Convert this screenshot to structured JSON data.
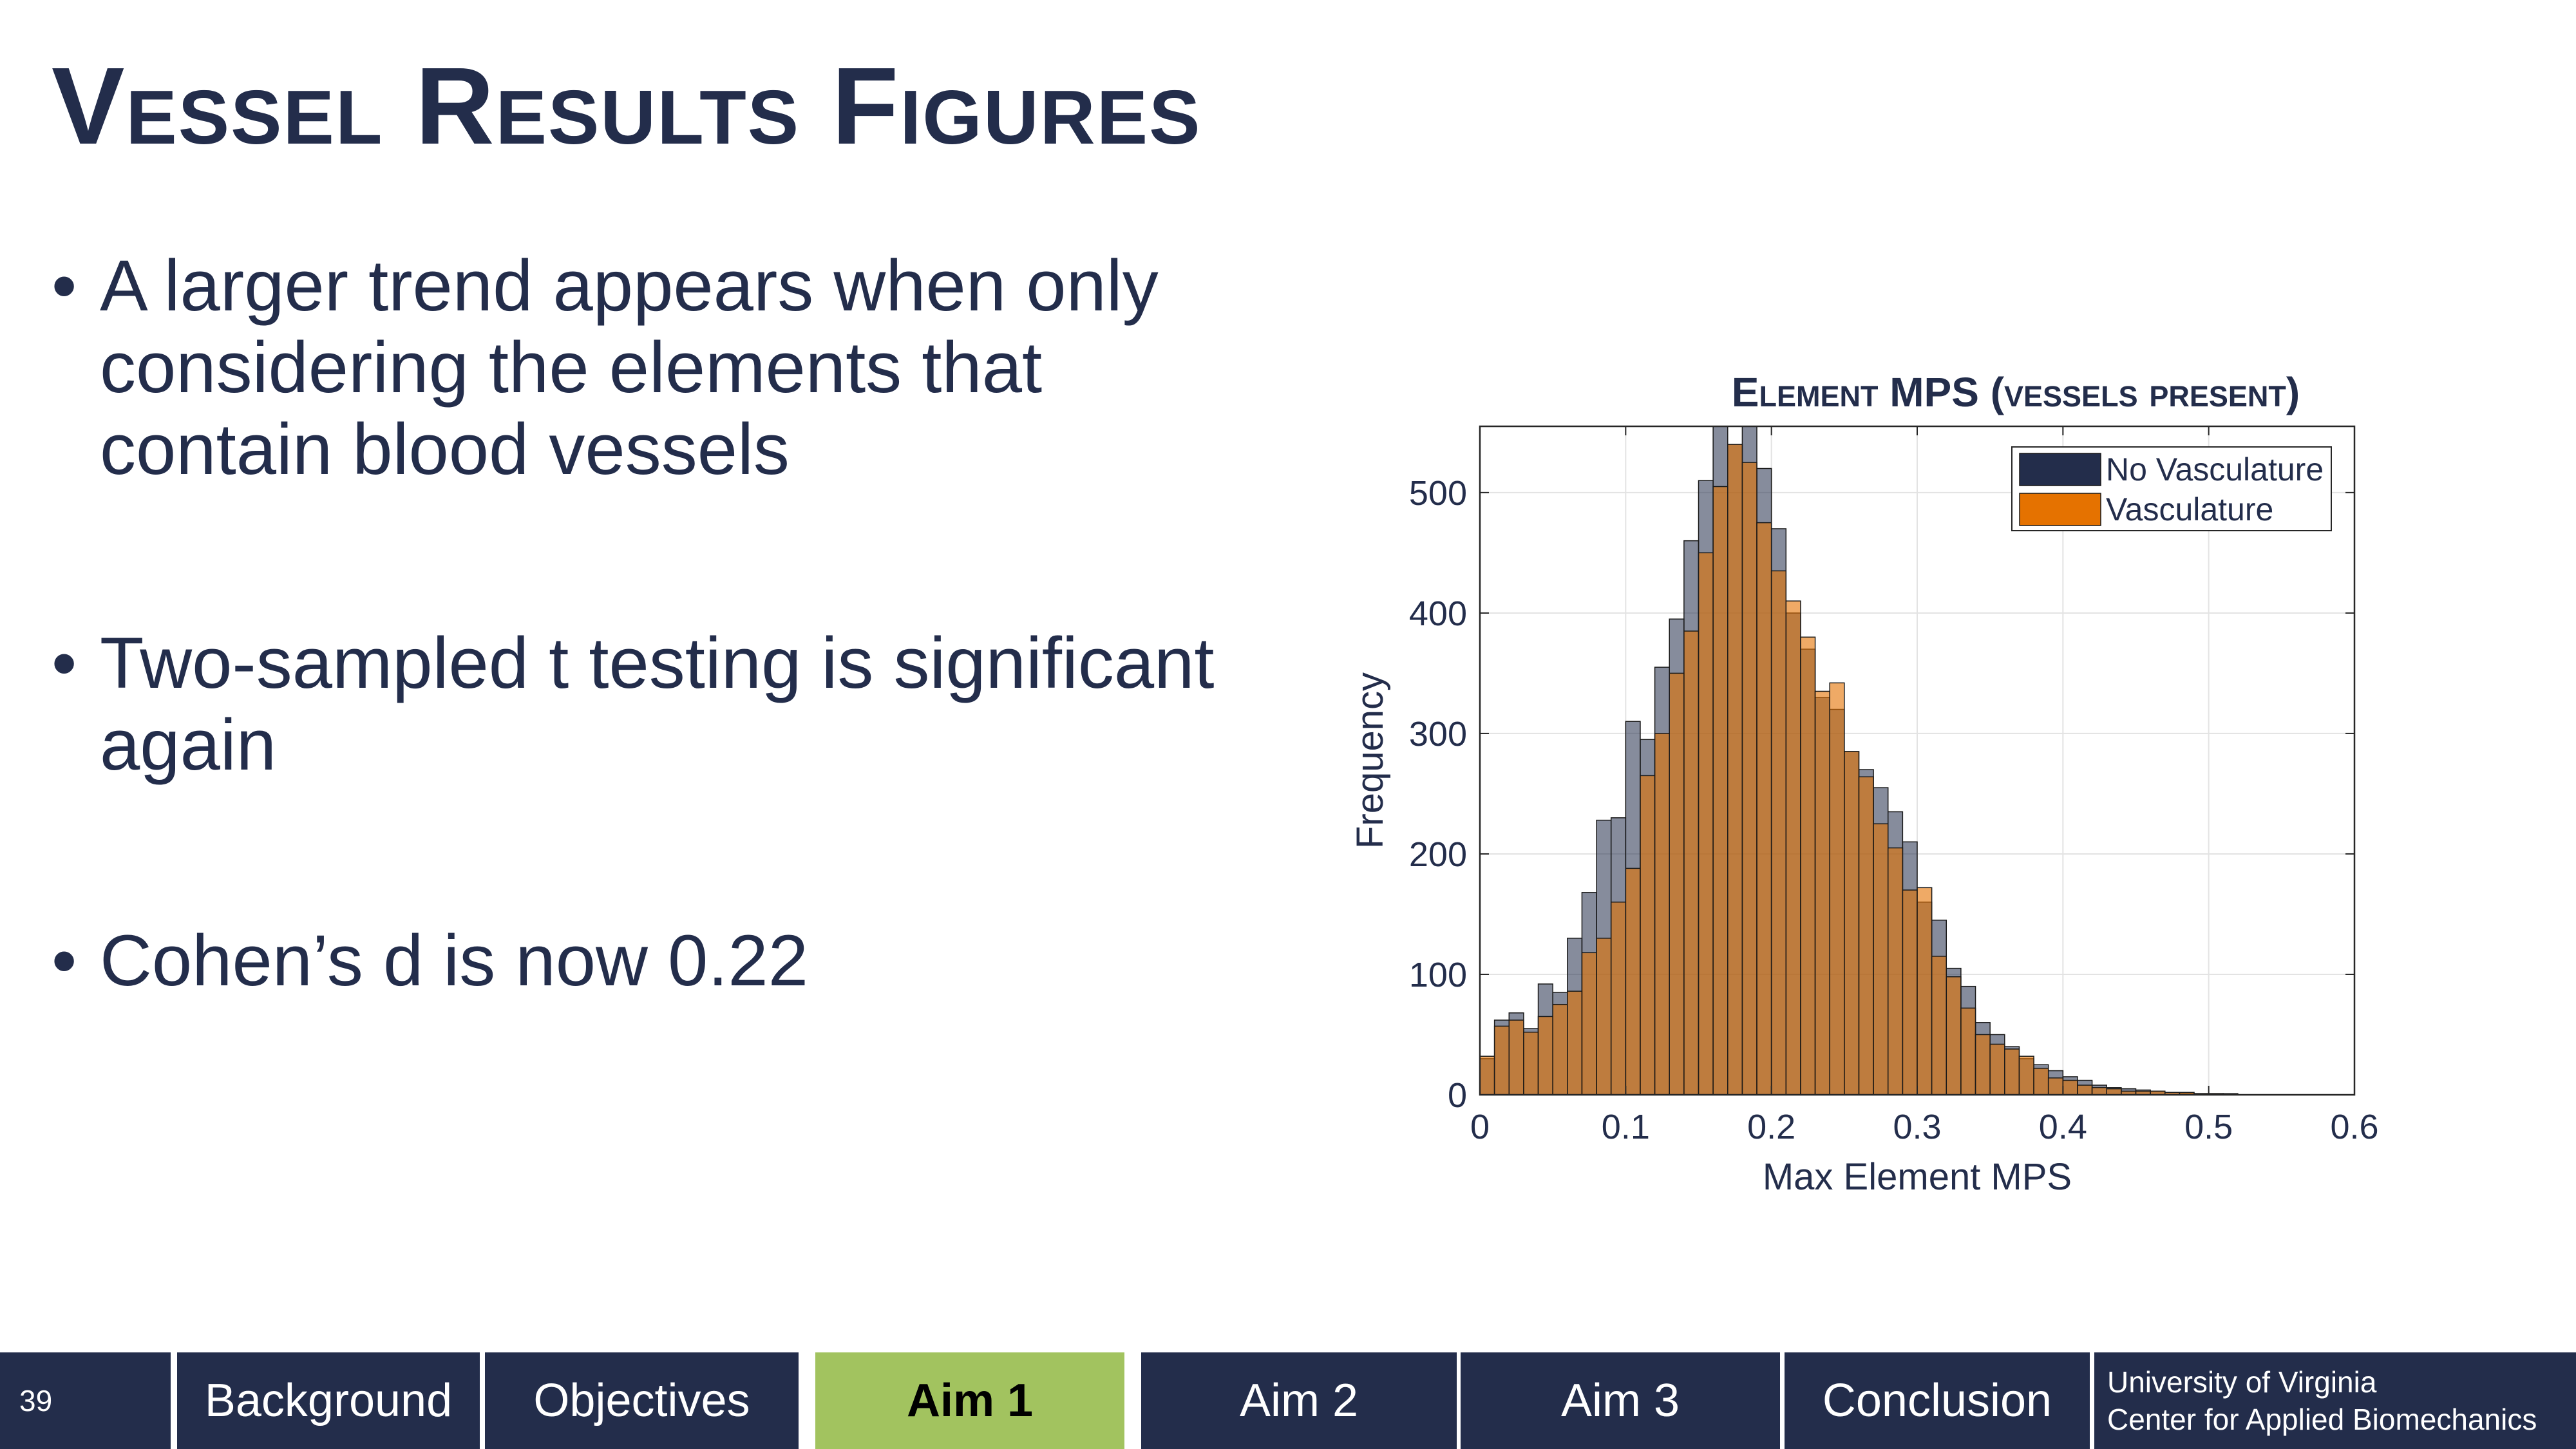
{
  "slide": {
    "title": "Vessel Results Figures",
    "bullets": [
      "A larger trend appears when only considering the elements that contain blood vessels",
      "Two-sampled t testing is significant again",
      "Cohen’s d is now 0.22"
    ]
  },
  "chart_data": {
    "type": "bar",
    "title": "Element MPS (vessels present)",
    "xlabel": "Max Element MPS",
    "ylabel": "Frequency",
    "xlim": [
      0,
      0.6
    ],
    "ylim": [
      0,
      555
    ],
    "xticks": [
      "0",
      "0.1",
      "0.2",
      "0.3",
      "0.4",
      "0.5",
      "0.6"
    ],
    "yticks": [
      "0",
      "100",
      "200",
      "300",
      "400",
      "500"
    ],
    "grid": true,
    "legend_position": "top-right",
    "bin_width": 0.01,
    "bin_start": 0,
    "series": [
      {
        "name": "No Vasculature",
        "color": "#232d4b",
        "values": [
          30,
          62,
          68,
          55,
          92,
          85,
          130,
          168,
          228,
          230,
          310,
          295,
          355,
          395,
          460,
          510,
          555,
          540,
          570,
          520,
          470,
          400,
          370,
          330,
          320,
          285,
          270,
          255,
          235,
          210,
          160,
          145,
          105,
          90,
          60,
          50,
          40,
          30,
          25,
          20,
          15,
          12,
          8,
          6,
          5,
          4,
          3,
          2,
          1,
          1,
          1,
          1,
          0,
          0,
          0,
          0,
          0,
          0,
          0,
          0
        ]
      },
      {
        "name": "Vasculature",
        "color": "#e57200",
        "values": [
          32,
          57,
          62,
          52,
          65,
          75,
          86,
          118,
          130,
          160,
          188,
          265,
          300,
          350,
          385,
          450,
          505,
          540,
          525,
          475,
          435,
          410,
          380,
          335,
          342,
          285,
          264,
          225,
          205,
          170,
          172,
          115,
          98,
          72,
          50,
          42,
          38,
          32,
          22,
          14,
          12,
          8,
          6,
          5,
          3,
          3,
          3,
          2,
          2,
          1,
          1,
          0,
          0,
          0,
          0,
          0,
          0,
          0,
          0,
          0
        ]
      }
    ]
  },
  "footer": {
    "page_number": "39",
    "tabs": [
      "Background",
      "Objectives",
      "Aim 1",
      "Aim 2",
      "Aim 3",
      "Conclusion"
    ],
    "active_tab": "Aim 1",
    "university_line1": "University of Virginia",
    "university_line2": "Center for Applied Biomechanics"
  }
}
